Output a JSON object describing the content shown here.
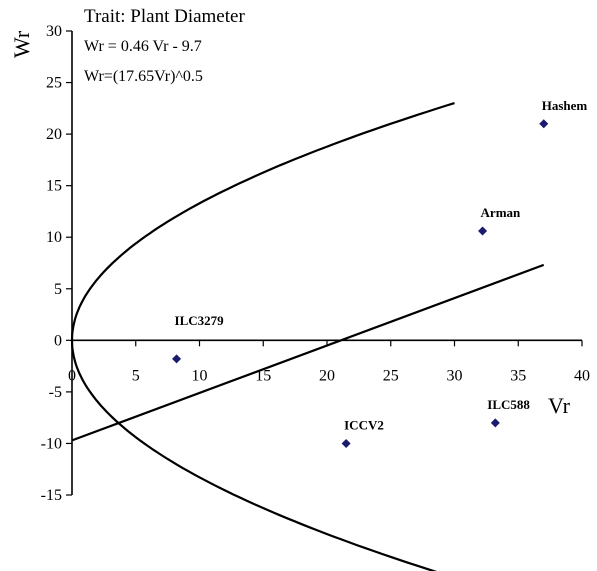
{
  "chart_data": {
    "type": "scatter",
    "title": "Trait: Plant Diameter",
    "annotations": [
      "Wr = 0.46 Vr - 9.7",
      "Wr=(17.65Vr)^0.5"
    ],
    "xlabel": "Vr",
    "ylabel": "Wr",
    "xlim": [
      0,
      40
    ],
    "ylim": [
      -15,
      30
    ],
    "x_ticks": [
      "0",
      "5",
      "10",
      "15",
      "20",
      "25",
      "30",
      "35",
      "40"
    ],
    "y_ticks": [
      "30",
      "25",
      "20",
      "15",
      "10",
      "5",
      "0",
      "-5",
      "-10",
      "-15"
    ],
    "grid": false,
    "marker_color": "#1a1a6e",
    "points": [
      {
        "label": "Hashem",
        "x": 37.0,
        "y": 21.0
      },
      {
        "label": "Arman",
        "x": 32.2,
        "y": 10.6
      },
      {
        "label": "ILC3279",
        "x": 8.2,
        "y": -1.8
      },
      {
        "label": "ICCV2",
        "x": 21.5,
        "y": -10.0
      },
      {
        "label": "ILC588",
        "x": 33.2,
        "y": -8.0
      }
    ],
    "regression": {
      "slope": 0.46,
      "intercept": -9.7,
      "x_range": [
        0,
        37
      ]
    },
    "parabola": {
      "coef": 17.65,
      "vr_max": 30
    }
  }
}
